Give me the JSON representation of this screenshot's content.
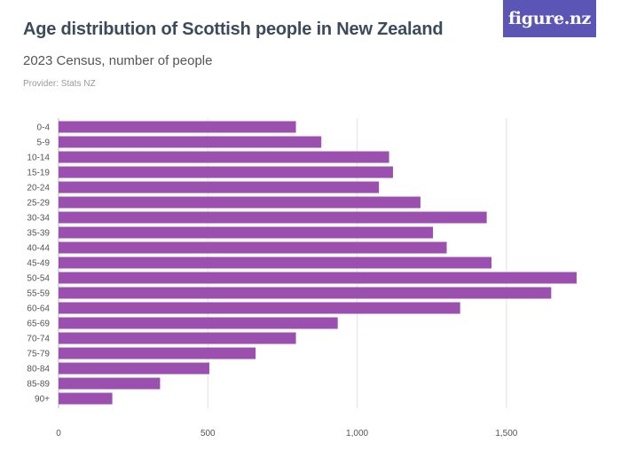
{
  "logo": {
    "text": "figure.nz"
  },
  "header": {
    "title": "Age distribution of Scottish people in New Zealand",
    "subtitle": "2023 Census, number of people",
    "provider": "Provider: Stats NZ"
  },
  "colors": {
    "bar": "#9b4fae",
    "grid": "#e2e2e2",
    "axis": "#bbbbbb",
    "logo_bg": "#5b56b5"
  },
  "chart_data": {
    "type": "bar",
    "orientation": "horizontal",
    "title": "Age distribution of Scottish people in New Zealand",
    "subtitle": "2023 Census, number of people",
    "xlabel": "",
    "ylabel": "",
    "categories": [
      "0-4",
      "5-9",
      "10-14",
      "15-19",
      "20-24",
      "25-29",
      "30-34",
      "35-39",
      "40-44",
      "45-49",
      "50-54",
      "55-59",
      "60-64",
      "65-69",
      "70-74",
      "75-79",
      "80-84",
      "85-89",
      "90+"
    ],
    "values": [
      795,
      880,
      1107,
      1120,
      1073,
      1212,
      1434,
      1254,
      1300,
      1450,
      1735,
      1650,
      1345,
      935,
      795,
      660,
      505,
      340,
      180
    ],
    "xlim": [
      0,
      1750
    ],
    "xticks": [
      0,
      500,
      1000,
      1500
    ],
    "xtick_labels": [
      "0",
      "500",
      "1,000",
      "1,500"
    ],
    "grid": true,
    "legend": "none"
  }
}
